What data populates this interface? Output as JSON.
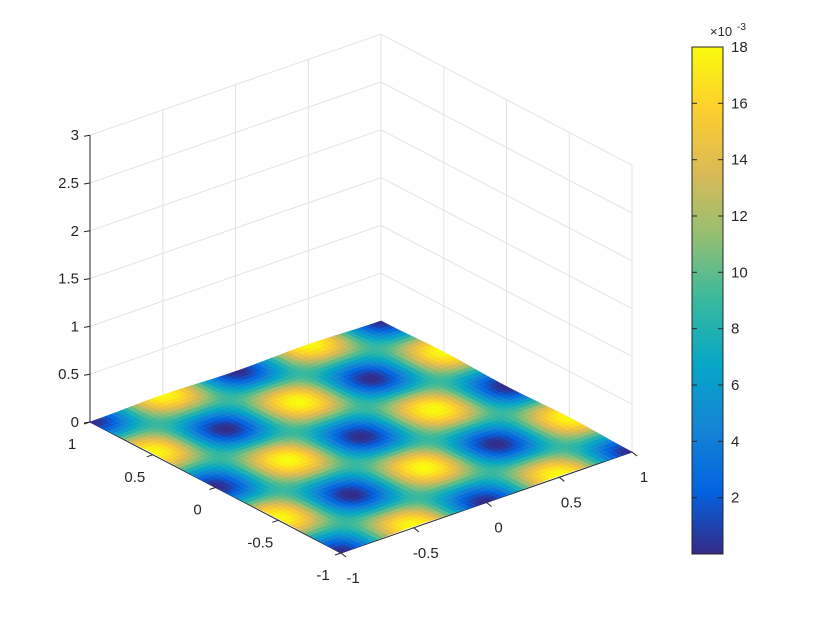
{
  "chart_data": {
    "type": "surface",
    "title": "",
    "xlabel": "",
    "ylabel": "",
    "zlabel": "",
    "view": "3d",
    "function": "z = 0.009 * (1 - cos(2*pi*x) * cos(2*pi*y))",
    "x_range": [
      -1,
      1
    ],
    "y_range": [
      -1,
      1
    ],
    "zlim": [
      0,
      3
    ],
    "x_ticks": [
      {
        "v": -1,
        "label": "-1"
      },
      {
        "v": -0.5,
        "label": "-0.5"
      },
      {
        "v": 0,
        "label": "0"
      },
      {
        "v": 0.5,
        "label": "0.5"
      },
      {
        "v": 1,
        "label": "1"
      }
    ],
    "y_ticks": [
      {
        "v": -1,
        "label": "-1"
      },
      {
        "v": -0.5,
        "label": "-0.5"
      },
      {
        "v": 0,
        "label": "0"
      },
      {
        "v": 0.5,
        "label": "0.5"
      },
      {
        "v": 1,
        "label": "1"
      }
    ],
    "z_ticks": [
      {
        "v": 0,
        "label": "0"
      },
      {
        "v": 0.5,
        "label": "0.5"
      },
      {
        "v": 1,
        "label": "1"
      },
      {
        "v": 1.5,
        "label": "1.5"
      },
      {
        "v": 2,
        "label": "2"
      },
      {
        "v": 2.5,
        "label": "2.5"
      },
      {
        "v": 3,
        "label": "3"
      }
    ],
    "grid": true,
    "colormap": "parula",
    "colorbar": {
      "placement": "right",
      "range": [
        0.0,
        0.018
      ],
      "ticks": [
        {
          "v": 0.002,
          "label": "2"
        },
        {
          "v": 0.004,
          "label": "4"
        },
        {
          "v": 0.006,
          "label": "6"
        },
        {
          "v": 0.008,
          "label": "8"
        },
        {
          "v": 0.01,
          "label": "10"
        },
        {
          "v": 0.012,
          "label": "12"
        },
        {
          "v": 0.014,
          "label": "14"
        },
        {
          "v": 0.016,
          "label": "16"
        },
        {
          "v": 0.018,
          "label": "18"
        }
      ],
      "exponent_label": "×10",
      "exponent": "-3",
      "colors": [
        "#352a87",
        "#0363e1",
        "#1485d4",
        "#06a7c6",
        "#38b99e",
        "#92bf73",
        "#d9ba56",
        "#fcce2e",
        "#f9fb0e"
      ]
    }
  }
}
